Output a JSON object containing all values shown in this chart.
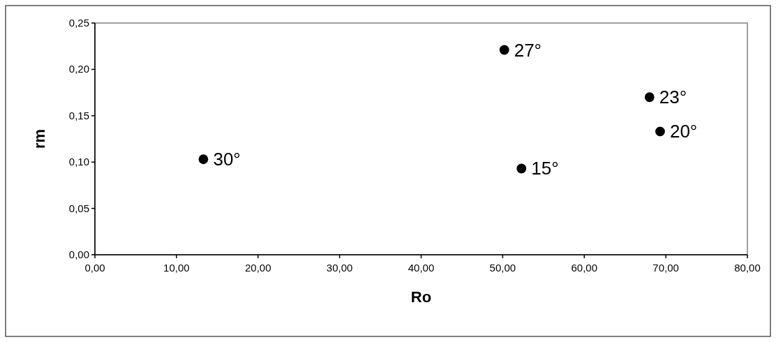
{
  "chart_data": {
    "type": "scatter",
    "xlabel": "Ro",
    "ylabel": "rm",
    "x": [
      13.3,
      50.2,
      68.0,
      69.3,
      52.3
    ],
    "series": [
      {
        "color": "#000000",
        "values": [
          0.103,
          0.221,
          0.17,
          0.133,
          0.093
        ]
      }
    ],
    "marker": "circle",
    "grid": false,
    "xlim": [
      0,
      80
    ],
    "ylim": [
      0,
      0.25
    ],
    "xticks": [
      {
        "value": 0,
        "label": "0,00"
      },
      {
        "value": 10,
        "label": "10,00"
      },
      {
        "value": 20,
        "label": "20,00"
      },
      {
        "value": 30,
        "label": "30,00"
      },
      {
        "value": 40,
        "label": "40,00"
      },
      {
        "value": 50,
        "label": "50,00"
      },
      {
        "value": 60,
        "label": "60,00"
      },
      {
        "value": 70,
        "label": "70,00"
      },
      {
        "value": 80,
        "label": "80,00"
      }
    ],
    "yticks": [
      {
        "value": 0,
        "label": "0,00"
      },
      {
        "value": 0.05,
        "label": "0,05"
      },
      {
        "value": 0.1,
        "label": "0,10"
      },
      {
        "value": 0.15,
        "label": "0,15"
      },
      {
        "value": 0.2,
        "label": "0,20"
      },
      {
        "value": 0.25,
        "label": "0,25"
      }
    ],
    "annotations": [
      {
        "text": "30°",
        "x": 13.3,
        "y": 0.103
      },
      {
        "text": "27°",
        "x": 50.2,
        "y": 0.221
      },
      {
        "text": "23°",
        "x": 68.0,
        "y": 0.17
      },
      {
        "text": "20°",
        "x": 69.3,
        "y": 0.133
      },
      {
        "text": "15°",
        "x": 52.3,
        "y": 0.093
      }
    ]
  }
}
